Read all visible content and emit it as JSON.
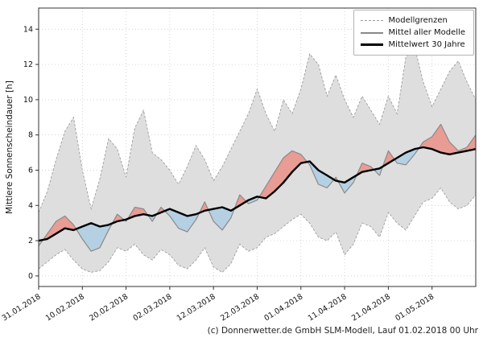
{
  "caption": "(c) Donnerwetter.de GmbH SLM-Modell, Lauf 01.02.2018 00 Uhr",
  "chart_data": {
    "type": "line",
    "title": "",
    "xlabel": "",
    "ylabel": "Mittlere Sonnenscheindauer [h]",
    "ylim": [
      -0.6,
      15.2
    ],
    "xlim_days": [
      0,
      100
    ],
    "yticks": [
      0,
      2,
      4,
      6,
      8,
      10,
      12,
      14
    ],
    "xticks": {
      "days": [
        0,
        10,
        20,
        30,
        40,
        50,
        60,
        70,
        80,
        90
      ],
      "labels": [
        "31.01.2018",
        "10.02.2018",
        "20.02.2018",
        "02.03.2018",
        "12.03.2018",
        "22.03.2018",
        "01.04.2018",
        "11.04.2018",
        "21.04.2018",
        "01.05.2018"
      ]
    },
    "grid": "dotted",
    "legend_position": "top-right",
    "legend": [
      {
        "label": "Modellgrenzen",
        "style": "dashed-gray"
      },
      {
        "label": "Mittel aller Modelle",
        "style": "solid-gray"
      },
      {
        "label": "Mittelwert 30 Jahre",
        "style": "thick-black"
      }
    ],
    "x_days": [
      0,
      2,
      4,
      6,
      8,
      10,
      12,
      14,
      16,
      18,
      20,
      22,
      24,
      26,
      28,
      30,
      32,
      34,
      36,
      38,
      40,
      42,
      44,
      46,
      48,
      50,
      52,
      54,
      56,
      58,
      60,
      62,
      64,
      66,
      68,
      70,
      72,
      74,
      76,
      78,
      80,
      82,
      84,
      86,
      88,
      90,
      92,
      94,
      96,
      98,
      100
    ],
    "series": [
      {
        "name": "Modellgrenzen (Minimum)",
        "values": [
          0.4,
          0.8,
          1.2,
          1.5,
          0.9,
          0.4,
          0.2,
          0.3,
          0.8,
          1.6,
          1.4,
          1.8,
          1.2,
          0.9,
          1.5,
          1.2,
          0.6,
          0.4,
          0.9,
          1.6,
          0.5,
          0.2,
          0.7,
          1.8,
          1.4,
          1.6,
          2.2,
          2.4,
          2.8,
          3.2,
          3.5,
          3.0,
          2.2,
          2.0,
          2.5,
          1.2,
          1.8,
          3.0,
          2.8,
          2.2,
          3.6,
          3.0,
          2.6,
          3.4,
          4.2,
          4.4,
          5.0,
          4.2,
          3.8,
          4.0,
          4.6
        ]
      },
      {
        "name": "Modellgrenzen (Maximum)",
        "values": [
          3.6,
          4.8,
          6.6,
          8.2,
          9.0,
          6.0,
          3.8,
          5.5,
          7.8,
          7.2,
          5.6,
          8.4,
          9.4,
          7.0,
          6.6,
          6.0,
          5.2,
          6.2,
          7.4,
          6.6,
          5.4,
          6.2,
          7.2,
          8.2,
          9.2,
          10.6,
          9.2,
          8.2,
          10.0,
          9.2,
          10.6,
          12.6,
          12.0,
          10.2,
          11.4,
          10.0,
          9.0,
          10.2,
          9.4,
          8.6,
          10.2,
          9.2,
          12.4,
          13.0,
          11.0,
          9.6,
          10.6,
          11.6,
          12.2,
          11.0,
          10.0
        ]
      },
      {
        "name": "Mittel aller Modelle",
        "values": [
          1.7,
          2.4,
          3.1,
          3.4,
          2.9,
          2.1,
          1.4,
          1.6,
          2.6,
          3.5,
          3.1,
          3.9,
          3.8,
          3.1,
          3.9,
          3.4,
          2.7,
          2.5,
          3.2,
          4.2,
          3.1,
          2.6,
          3.3,
          4.6,
          4.1,
          4.3,
          5.1,
          5.9,
          6.7,
          7.1,
          6.9,
          6.3,
          5.2,
          5.0,
          5.6,
          4.7,
          5.3,
          6.4,
          6.2,
          5.7,
          7.1,
          6.4,
          6.3,
          6.9,
          7.6,
          7.9,
          8.6,
          7.6,
          7.1,
          7.3,
          8.0
        ]
      },
      {
        "name": "Mittelwert 30 Jahre",
        "values": [
          2.0,
          2.1,
          2.4,
          2.7,
          2.6,
          2.8,
          3.0,
          2.8,
          2.9,
          3.1,
          3.2,
          3.4,
          3.5,
          3.4,
          3.6,
          3.8,
          3.6,
          3.4,
          3.5,
          3.7,
          3.8,
          3.9,
          3.7,
          4.0,
          4.3,
          4.5,
          4.4,
          4.8,
          5.3,
          5.9,
          6.4,
          6.5,
          6.0,
          5.7,
          5.4,
          5.3,
          5.6,
          5.9,
          6.0,
          6.1,
          6.4,
          6.7,
          7.0,
          7.2,
          7.3,
          7.2,
          7.0,
          6.9,
          7.0,
          7.1,
          7.2
        ]
      }
    ],
    "colors": {
      "envelope_fill": "#dedede",
      "envelope_edge": "#9e9e9e",
      "model_mean": "#8a8a8a",
      "clim_mean": "#000000",
      "above_fill": "#e89c94",
      "below_fill": "#b5d0e2",
      "grid": "#c4c4c4"
    }
  }
}
